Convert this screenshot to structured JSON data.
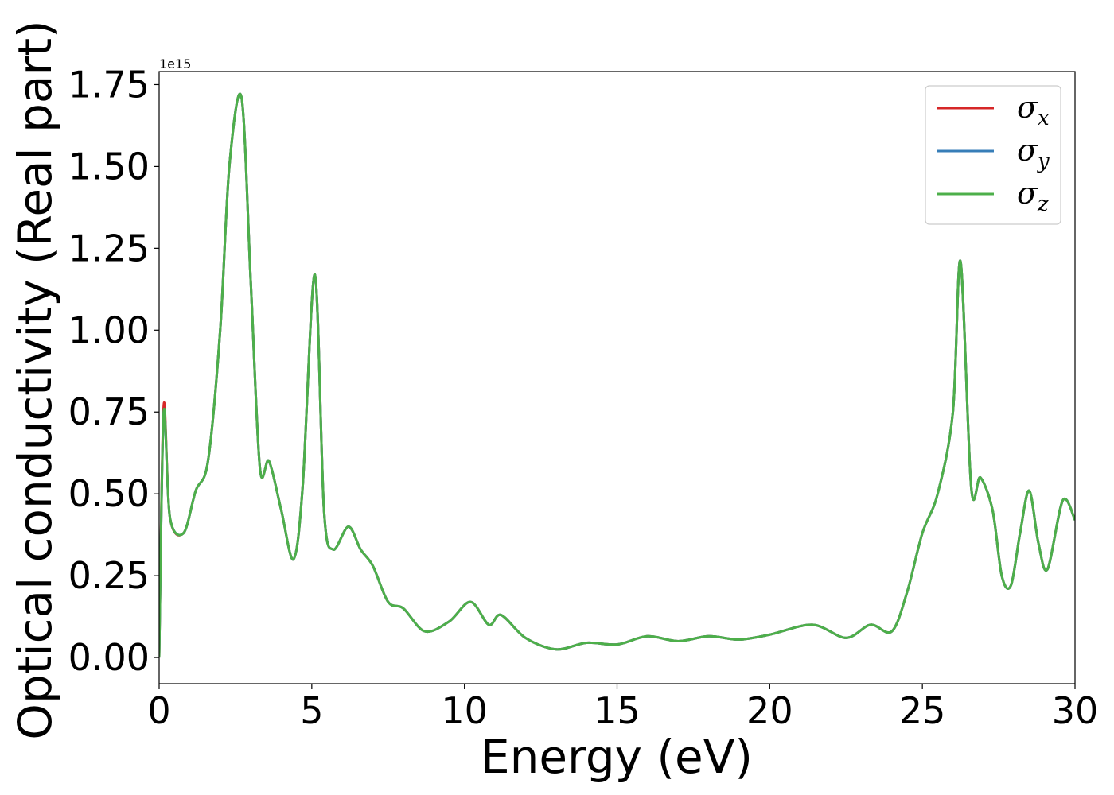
{
  "chart_data": {
    "type": "line",
    "xlabel": "Energy (eV)",
    "ylabel": "Optical conductivity (Real part)",
    "y_offset_text": "1e15",
    "xlim": [
      0,
      30
    ],
    "ylim": [
      -0.08,
      1.79
    ],
    "y_scale_factor": 1000000000000000.0,
    "xticks": [
      0,
      5,
      10,
      15,
      20,
      25,
      30
    ],
    "xtick_labels": [
      "0",
      "5",
      "10",
      "15",
      "20",
      "25",
      "30"
    ],
    "yticks": [
      0.0,
      0.25,
      0.5,
      0.75,
      1.0,
      1.25,
      1.5,
      1.75
    ],
    "ytick_labels": [
      "0.00",
      "0.25",
      "0.50",
      "0.75",
      "1.00",
      "1.25",
      "1.50",
      "1.75"
    ],
    "grid": false,
    "legend_position": "top-right",
    "series": [
      {
        "name": "σx",
        "legend_symbol": "σ",
        "legend_subscript": "x",
        "color": "#d62728",
        "x": [
          0.0,
          0.15,
          0.35,
          0.8,
          1.2,
          1.6,
          2.0,
          2.3,
          2.7,
          3.0,
          3.3,
          3.6,
          4.0,
          4.4,
          4.7,
          5.1,
          5.4,
          5.7,
          6.2,
          6.6,
          7.0,
          7.5,
          8.0,
          8.7,
          9.5,
          10.2,
          10.8,
          11.2,
          12.0,
          13.0,
          14.0,
          15.0,
          16.0,
          17.0,
          18.0,
          19.0,
          20.0,
          21.4,
          22.5,
          23.3,
          24.0,
          24.5,
          25.0,
          25.5,
          26.0,
          26.25,
          26.6,
          26.9,
          27.3,
          27.6,
          27.9,
          28.2,
          28.5,
          28.8,
          29.1,
          29.6,
          30.0
        ],
        "values": [
          0.0,
          0.77,
          0.43,
          0.38,
          0.51,
          0.6,
          1.0,
          1.5,
          1.71,
          1.15,
          0.58,
          0.6,
          0.45,
          0.3,
          0.52,
          1.17,
          0.45,
          0.33,
          0.4,
          0.33,
          0.28,
          0.17,
          0.15,
          0.08,
          0.11,
          0.17,
          0.1,
          0.13,
          0.06,
          0.025,
          0.045,
          0.04,
          0.065,
          0.05,
          0.065,
          0.055,
          0.07,
          0.1,
          0.06,
          0.1,
          0.08,
          0.2,
          0.38,
          0.5,
          0.75,
          1.21,
          0.52,
          0.55,
          0.45,
          0.25,
          0.22,
          0.38,
          0.51,
          0.35,
          0.27,
          0.48,
          0.42
        ]
      },
      {
        "name": "σy",
        "legend_symbol": "σ",
        "legend_subscript": "y",
        "color": "#377eb8",
        "x": [
          0.0,
          0.15,
          0.35,
          0.8,
          1.2,
          1.6,
          2.0,
          2.3,
          2.7,
          3.0,
          3.3,
          3.6,
          4.0,
          4.4,
          4.7,
          5.1,
          5.4,
          5.7,
          6.2,
          6.6,
          7.0,
          7.5,
          8.0,
          8.7,
          9.5,
          10.2,
          10.8,
          11.2,
          12.0,
          13.0,
          14.0,
          15.0,
          16.0,
          17.0,
          18.0,
          19.0,
          20.0,
          21.4,
          22.5,
          23.3,
          24.0,
          24.5,
          25.0,
          25.5,
          26.0,
          26.25,
          26.6,
          26.9,
          27.3,
          27.6,
          27.9,
          28.2,
          28.5,
          28.8,
          29.1,
          29.6,
          30.0
        ],
        "values": [
          0.0,
          0.75,
          0.43,
          0.38,
          0.51,
          0.6,
          1.0,
          1.5,
          1.71,
          1.15,
          0.58,
          0.6,
          0.45,
          0.3,
          0.52,
          1.17,
          0.45,
          0.33,
          0.4,
          0.33,
          0.28,
          0.17,
          0.15,
          0.08,
          0.11,
          0.17,
          0.1,
          0.13,
          0.06,
          0.025,
          0.045,
          0.04,
          0.065,
          0.05,
          0.065,
          0.055,
          0.07,
          0.1,
          0.06,
          0.1,
          0.08,
          0.2,
          0.38,
          0.5,
          0.75,
          1.21,
          0.52,
          0.55,
          0.45,
          0.25,
          0.22,
          0.38,
          0.51,
          0.35,
          0.27,
          0.48,
          0.42
        ]
      },
      {
        "name": "σz",
        "legend_symbol": "σ",
        "legend_subscript": "z",
        "color": "#4daf4a",
        "x": [
          0.0,
          0.15,
          0.35,
          0.8,
          1.2,
          1.6,
          2.0,
          2.3,
          2.7,
          3.0,
          3.3,
          3.6,
          4.0,
          4.4,
          4.7,
          5.1,
          5.4,
          5.7,
          6.2,
          6.6,
          7.0,
          7.5,
          8.0,
          8.7,
          9.5,
          10.2,
          10.8,
          11.2,
          12.0,
          13.0,
          14.0,
          15.0,
          16.0,
          17.0,
          18.0,
          19.0,
          20.0,
          21.4,
          22.5,
          23.3,
          24.0,
          24.5,
          25.0,
          25.5,
          26.0,
          26.25,
          26.6,
          26.9,
          27.3,
          27.6,
          27.9,
          28.2,
          28.5,
          28.8,
          29.1,
          29.6,
          30.0
        ],
        "values": [
          0.0,
          0.75,
          0.43,
          0.38,
          0.51,
          0.6,
          1.0,
          1.5,
          1.71,
          1.15,
          0.58,
          0.6,
          0.45,
          0.3,
          0.52,
          1.17,
          0.45,
          0.33,
          0.4,
          0.33,
          0.28,
          0.17,
          0.15,
          0.08,
          0.11,
          0.17,
          0.1,
          0.13,
          0.06,
          0.025,
          0.045,
          0.04,
          0.065,
          0.05,
          0.065,
          0.055,
          0.07,
          0.1,
          0.06,
          0.1,
          0.08,
          0.2,
          0.38,
          0.5,
          0.75,
          1.21,
          0.52,
          0.55,
          0.45,
          0.25,
          0.22,
          0.38,
          0.51,
          0.35,
          0.27,
          0.48,
          0.42
        ]
      }
    ]
  }
}
